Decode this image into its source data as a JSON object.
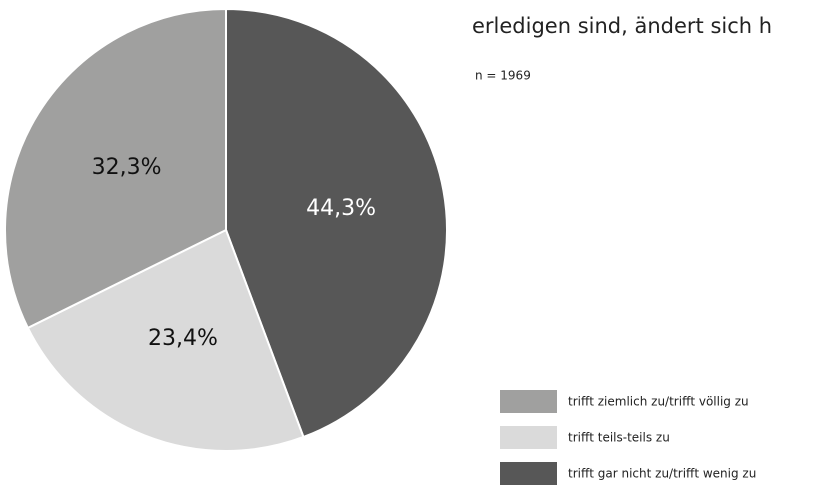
{
  "chart_data": {
    "type": "pie",
    "title": "erledigen sind, ändert sich h",
    "subtitle": "n = 1969",
    "categories": [
      "trifft ziemlich zu/trifft völlig zu",
      "trifft teils-teils zu",
      "trifft gar nicht zu/trifft wenig zu"
    ],
    "values": [
      32.3,
      23.4,
      44.3
    ],
    "value_labels": [
      "32,3%",
      "23,4%",
      "44,3%"
    ],
    "colors": [
      "#a0a09f",
      "#dadada",
      "#575757"
    ]
  }
}
